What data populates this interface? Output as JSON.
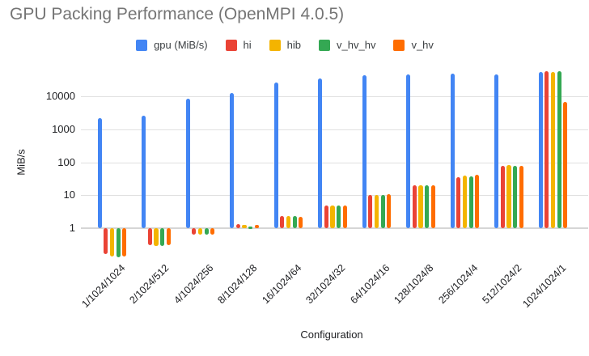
{
  "title": "GPU Packing Performance (OpenMPI 4.0.5)",
  "axes": {
    "x_title": "Configuration",
    "y_title": "MiB/s"
  },
  "chart_data": {
    "type": "bar",
    "title": "GPU Packing Performance (OpenMPI 4.0.5)",
    "xlabel": "Configuration",
    "ylabel": "MiB/s",
    "yscale": "log",
    "grid": true,
    "legend_position": "top",
    "yticks": [
      1,
      10,
      100,
      1000,
      10000
    ],
    "ylim": [
      0.12,
      70000
    ],
    "categories": [
      "1/1024/1024",
      "2/1024/512",
      "4/1024/256",
      "8/1024/128",
      "16/1024/64",
      "32/1024/32",
      "64/1024/16",
      "128/1024/8",
      "256/1024/4",
      "512/1024/2",
      "1024/1024/1"
    ],
    "series": [
      {
        "name": "gpu (MiB/s)",
        "color": "#4285F4",
        "values": [
          2200,
          2600,
          8500,
          13000,
          26000,
          35000,
          44000,
          46000,
          50000,
          46000,
          56000
        ]
      },
      {
        "name": "hi",
        "color": "#EA4335",
        "values": [
          0.16,
          0.3,
          0.62,
          1.3,
          2.3,
          5.0,
          10,
          20,
          36,
          78,
          57000
        ]
      },
      {
        "name": "hib",
        "color": "#F4B400",
        "values": [
          0.14,
          0.29,
          0.63,
          1.25,
          2.4,
          4.8,
          10,
          20,
          39,
          82,
          56000
        ]
      },
      {
        "name": "v_hv_hv",
        "color": "#34A853",
        "values": [
          0.13,
          0.29,
          0.63,
          1.15,
          2.3,
          4.9,
          10,
          20,
          38,
          78,
          58000
        ]
      },
      {
        "name": "v_hv",
        "color": "#FF6D00",
        "values": [
          0.14,
          0.31,
          0.62,
          1.25,
          2.2,
          5.0,
          10.5,
          20,
          42,
          80,
          7000
        ]
      }
    ]
  },
  "colors": {
    "title_text": "#757575",
    "grid": "#e0e0e0",
    "axis_text": "#202124",
    "background": "#ffffff"
  }
}
